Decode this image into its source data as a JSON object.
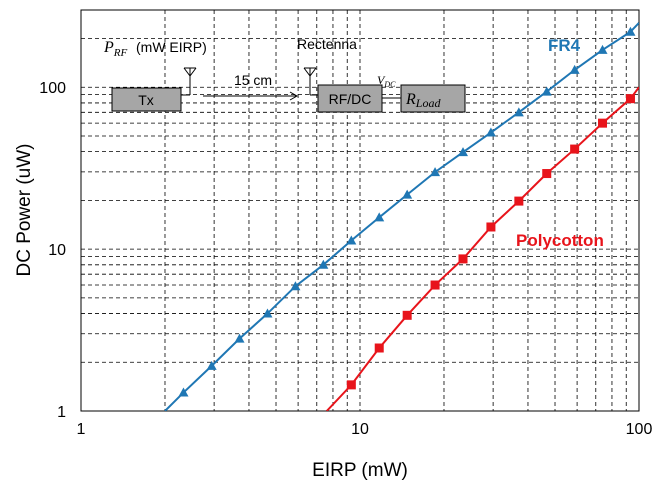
{
  "chart_data": {
    "type": "line",
    "xlabel": "EIRP (mW)",
    "ylabel": "DC Power (uW)",
    "xscale": "log",
    "yscale": "log",
    "xlim": [
      1,
      100
    ],
    "ylim": [
      1,
      300
    ],
    "x_ticks": [
      "1",
      "10",
      "100"
    ],
    "y_ticks": [
      "1",
      "10",
      "100"
    ],
    "grid": "dashed, minor and major",
    "series": [
      {
        "name": "FR4",
        "color": "#1f77b4",
        "marker": "triangle",
        "x": [
          2.0,
          2.33,
          2.94,
          3.7,
          4.66,
          5.87,
          7.39,
          9.31,
          11.72,
          14.76,
          18.58,
          23.4,
          29.46,
          37.1,
          46.7,
          58.8,
          74.0,
          93.2,
          100
        ],
        "y": [
          1.0,
          1.3,
          1.9,
          2.8,
          4.0,
          5.9,
          8.0,
          11.3,
          15.7,
          21.7,
          29.9,
          39.7,
          52.5,
          70.0,
          94.0,
          128.0,
          170.0,
          220.0,
          250.0
        ]
      },
      {
        "name": "Polycotton",
        "color": "#e8141b",
        "marker": "square",
        "x": [
          7.6,
          9.31,
          11.72,
          14.76,
          18.58,
          23.4,
          29.46,
          37.1,
          46.7,
          58.8,
          74.0,
          93.2,
          100
        ],
        "y": [
          1.0,
          1.45,
          2.45,
          3.9,
          6.0,
          8.7,
          13.7,
          19.8,
          29.3,
          41.5,
          60.0,
          85.0,
          100.0
        ]
      }
    ]
  },
  "diagram": {
    "prf_label_main": "P",
    "prf_label_sub": "RF",
    "prf_label_rest": "(mW EIRP)",
    "rectenna_label": "Rectenna",
    "tx_label": "Tx",
    "distance_label": "15 cm",
    "rfdc_label": "RF/DC",
    "vdc_label_main": "V",
    "vdc_label_sub": "DC",
    "rload_label_main": "R",
    "rload_label_sub": "Load",
    "box_fill": "#a6a6a6"
  }
}
